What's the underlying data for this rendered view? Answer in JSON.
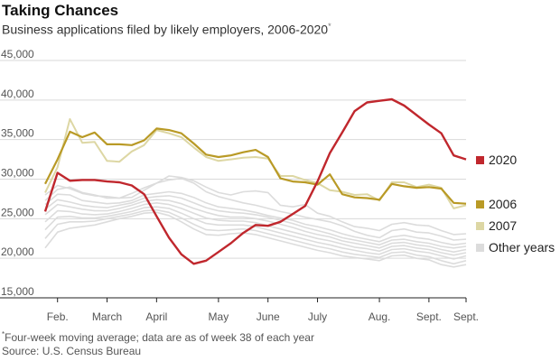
{
  "title": "Taking Chances",
  "subtitle": "Business applications filed by likely employers, 2006-2020",
  "subtitle_marker": "*",
  "footnote_marker": "*",
  "footnote": "Four-week moving average; data are as of week 38 of each year",
  "source": "Source: U.S. Census Bureau",
  "colors": {
    "s2020": "#c0272d",
    "s2006": "#b99a26",
    "s2007": "#ddd7a4",
    "other": "#dcdcdc",
    "grid": "#d9d9d9",
    "axis": "#222222"
  },
  "chart_data": {
    "type": "line",
    "title": "Taking Chances",
    "subtitle": "Business applications filed by likely employers, 2006-2020",
    "x_unit": "week of year",
    "xlim": [
      4,
      38
    ],
    "ylim": [
      15000,
      45000
    ],
    "yticks": [
      45000,
      40000,
      35000,
      30000,
      25000,
      20000,
      15000
    ],
    "ytick_labels": [
      "45,000",
      "40,000",
      "35,000",
      "30,000",
      "25,000",
      "20,000",
      "15,000"
    ],
    "xticks": [
      {
        "week": 5,
        "label": "Feb."
      },
      {
        "week": 9,
        "label": "March"
      },
      {
        "week": 13,
        "label": "April"
      },
      {
        "week": 18,
        "label": "May"
      },
      {
        "week": 22,
        "label": "June"
      },
      {
        "week": 26,
        "label": "July"
      },
      {
        "week": 31,
        "label": "Aug."
      },
      {
        "week": 35,
        "label": "Sept."
      },
      {
        "week": 38,
        "label": "Sept."
      }
    ],
    "grid": "horizontal",
    "legend_position": "right",
    "series": [
      {
        "name": "2020",
        "legend": true,
        "weeks": [
          4,
          5,
          6,
          7,
          8,
          9,
          10,
          11,
          12,
          13,
          14,
          15,
          16,
          17,
          18,
          19,
          20,
          21,
          22,
          23,
          24,
          25,
          26,
          27,
          28,
          29,
          30,
          31,
          32,
          33,
          34,
          35,
          36,
          37,
          38
        ],
        "values": [
          25900,
          30800,
          29800,
          29900,
          29900,
          29700,
          29600,
          29200,
          28100,
          25300,
          22600,
          20500,
          19300,
          19700,
          20800,
          21900,
          23200,
          24200,
          24100,
          24600,
          25600,
          26600,
          29700,
          33300,
          35900,
          38600,
          39700,
          39900,
          40100,
          39300,
          38100,
          36900,
          35800,
          33000,
          32500
        ]
      },
      {
        "name": "2006",
        "legend": true,
        "weeks": [
          4,
          5,
          6,
          7,
          8,
          9,
          10,
          11,
          12,
          13,
          14,
          15,
          16,
          17,
          18,
          19,
          20,
          21,
          22,
          23,
          24,
          25,
          26,
          27,
          28,
          29,
          30,
          31,
          32,
          33,
          34,
          35,
          36,
          37,
          38
        ],
        "values": [
          29400,
          32500,
          36000,
          35300,
          35900,
          34400,
          34400,
          34300,
          34900,
          36400,
          36200,
          35800,
          34500,
          33100,
          32800,
          33000,
          33400,
          33700,
          32800,
          30100,
          29700,
          29600,
          29300,
          30600,
          28100,
          27700,
          27600,
          27400,
          29400,
          29100,
          28900,
          29000,
          28800,
          27000,
          26900
        ]
      },
      {
        "name": "2007",
        "legend": true,
        "weeks": [
          4,
          5,
          6,
          7,
          8,
          9,
          10,
          11,
          12,
          13,
          14,
          15,
          16,
          17,
          18,
          19,
          20,
          21,
          22,
          23,
          24,
          25,
          26,
          27,
          28,
          29,
          30,
          31,
          32,
          33,
          34,
          35,
          36,
          37,
          38
        ],
        "values": [
          28300,
          31500,
          37600,
          34600,
          34700,
          32300,
          32200,
          33500,
          34300,
          36200,
          35800,
          35300,
          34000,
          32800,
          32300,
          32500,
          32700,
          32800,
          32600,
          30400,
          30400,
          29900,
          29500,
          28600,
          28400,
          28000,
          28100,
          27300,
          29600,
          29600,
          29000,
          29300,
          28900,
          26300,
          26700
        ]
      },
      {
        "name": "Other years",
        "legend": true,
        "weeks": [
          4,
          5,
          6,
          7,
          8,
          9,
          10,
          11,
          12,
          13,
          14,
          15,
          16,
          17,
          18,
          19,
          20,
          21,
          22,
          23,
          24,
          25,
          26,
          27,
          28,
          29,
          30,
          31,
          32,
          33,
          34,
          35,
          36,
          37,
          38
        ],
        "values": [
          28000,
          29200,
          28800,
          28200,
          27900,
          27800,
          27600,
          27700,
          28600,
          29500,
          30400,
          30200,
          29800,
          29000,
          28300,
          28000,
          28400,
          28500,
          28300,
          26700,
          26500,
          26800,
          25700,
          25300,
          24600,
          24000,
          23800,
          23500,
          24300,
          24500,
          24200,
          24100,
          23500,
          23000,
          23100
        ]
      },
      {
        "name": "",
        "legend": false,
        "weeks": [
          4,
          5,
          6,
          7,
          8,
          9,
          10,
          11,
          12,
          13,
          14,
          15,
          16,
          17,
          18,
          19,
          20,
          21,
          22,
          23,
          24,
          25,
          26,
          27,
          28,
          29,
          30,
          31,
          32,
          33,
          34,
          35,
          36,
          37,
          38
        ],
        "values": [
          27300,
          28700,
          29000,
          28300,
          28000,
          27600,
          27600,
          28200,
          28900,
          29500,
          29900,
          30100,
          29500,
          28400,
          27800,
          27400,
          27000,
          26700,
          26300,
          25900,
          25600,
          25200,
          24900,
          24600,
          24100,
          23400,
          22900,
          22600,
          23500,
          23700,
          23300,
          23200,
          22800,
          22300,
          22400
        ]
      },
      {
        "name": "",
        "legend": false,
        "weeks": [
          4,
          5,
          6,
          7,
          8,
          9,
          10,
          11,
          12,
          13,
          14,
          15,
          16,
          17,
          18,
          19,
          20,
          21,
          22,
          23,
          24,
          25,
          26,
          27,
          28,
          29,
          30,
          31,
          32,
          33,
          34,
          35,
          36,
          37,
          38
        ],
        "values": [
          26800,
          28100,
          28000,
          27300,
          27100,
          26900,
          27000,
          27300,
          28000,
          28200,
          28400,
          28200,
          27700,
          27000,
          26500,
          26300,
          26100,
          25800,
          25400,
          25100,
          24800,
          24300,
          24000,
          23600,
          23100,
          22700,
          22400,
          22100,
          22700,
          22900,
          22600,
          22400,
          22000,
          21700,
          21900
        ]
      },
      {
        "name": "",
        "legend": false,
        "weeks": [
          4,
          5,
          6,
          7,
          8,
          9,
          10,
          11,
          12,
          13,
          14,
          15,
          16,
          17,
          18,
          19,
          20,
          21,
          22,
          23,
          24,
          25,
          26,
          27,
          28,
          29,
          30,
          31,
          32,
          33,
          34,
          35,
          36,
          37,
          38
        ],
        "values": [
          26200,
          27400,
          27100,
          26700,
          26500,
          26400,
          26700,
          27000,
          27600,
          27800,
          27900,
          27600,
          27000,
          26400,
          26000,
          25800,
          25700,
          25500,
          25200,
          24800,
          24400,
          23900,
          23500,
          23100,
          22600,
          22300,
          22000,
          21700,
          22300,
          22400,
          22100,
          21900,
          21500,
          21300,
          21500
        ]
      },
      {
        "name": "",
        "legend": false,
        "weeks": [
          4,
          5,
          6,
          7,
          8,
          9,
          10,
          11,
          12,
          13,
          14,
          15,
          16,
          17,
          18,
          19,
          20,
          21,
          22,
          23,
          24,
          25,
          26,
          27,
          28,
          29,
          30,
          31,
          32,
          33,
          34,
          35,
          36,
          37,
          38
        ],
        "values": [
          25500,
          26800,
          26500,
          26200,
          26000,
          26000,
          26300,
          26700,
          27200,
          27400,
          27300,
          26900,
          26300,
          25800,
          25400,
          25200,
          25200,
          25000,
          24700,
          24300,
          23900,
          23400,
          23000,
          22700,
          22200,
          21900,
          21600,
          21300,
          21900,
          22000,
          21700,
          21500,
          21100,
          20800,
          21100
        ]
      },
      {
        "name": "",
        "legend": false,
        "weeks": [
          4,
          5,
          6,
          7,
          8,
          9,
          10,
          11,
          12,
          13,
          14,
          15,
          16,
          17,
          18,
          19,
          20,
          21,
          22,
          23,
          24,
          25,
          26,
          27,
          28,
          29,
          30,
          31,
          32,
          33,
          34,
          35,
          36,
          37,
          38
        ],
        "values": [
          24600,
          26000,
          25900,
          25600,
          25500,
          25600,
          25900,
          26300,
          26800,
          27000,
          26800,
          26300,
          25700,
          25100,
          24800,
          24700,
          24700,
          24500,
          24100,
          23700,
          23300,
          22900,
          22500,
          22200,
          21800,
          21400,
          21200,
          20900,
          21500,
          21600,
          21300,
          21100,
          20700,
          20400,
          20700
        ]
      },
      {
        "name": "",
        "legend": false,
        "weeks": [
          4,
          5,
          6,
          7,
          8,
          9,
          10,
          11,
          12,
          13,
          14,
          15,
          16,
          17,
          18,
          19,
          20,
          21,
          22,
          23,
          24,
          25,
          26,
          27,
          28,
          29,
          30,
          31,
          32,
          33,
          34,
          35,
          36,
          37,
          38
        ],
        "values": [
          23600,
          25200,
          25300,
          25100,
          25100,
          25300,
          25600,
          25900,
          26400,
          26500,
          26300,
          25700,
          25000,
          24400,
          24200,
          24200,
          24200,
          24000,
          23600,
          23200,
          22800,
          22400,
          22000,
          21700,
          21300,
          21000,
          20700,
          20500,
          21100,
          21200,
          20900,
          20700,
          20300,
          19900,
          20300
        ]
      },
      {
        "name": "",
        "legend": false,
        "weeks": [
          4,
          5,
          6,
          7,
          8,
          9,
          10,
          11,
          12,
          13,
          14,
          15,
          16,
          17,
          18,
          19,
          20,
          21,
          22,
          23,
          24,
          25,
          26,
          27,
          28,
          29,
          30,
          31,
          32,
          33,
          34,
          35,
          36,
          37,
          38
        ],
        "values": [
          22500,
          24300,
          24600,
          24600,
          24700,
          25000,
          25300,
          25600,
          26000,
          26100,
          25800,
          25100,
          24300,
          23600,
          23500,
          23600,
          23700,
          23500,
          23100,
          22700,
          22300,
          21900,
          21500,
          21200,
          20800,
          20500,
          20300,
          20100,
          20700,
          20800,
          20400,
          20200,
          19700,
          19300,
          19700
        ]
      },
      {
        "name": "",
        "legend": false,
        "weeks": [
          4,
          5,
          6,
          7,
          8,
          9,
          10,
          11,
          12,
          13,
          14,
          15,
          16,
          17,
          18,
          19,
          20,
          21,
          22,
          23,
          24,
          25,
          26,
          27,
          28,
          29,
          30,
          31,
          32,
          33,
          34,
          35,
          36,
          37,
          38
        ],
        "values": [
          21300,
          23300,
          23800,
          24000,
          24200,
          24600,
          25000,
          25300,
          25700,
          25800,
          25400,
          24600,
          23700,
          23000,
          22900,
          23100,
          23200,
          23000,
          22600,
          22200,
          21800,
          21400,
          21000,
          20700,
          20300,
          20100,
          19900,
          19700,
          20300,
          20400,
          20000,
          19800,
          19200,
          18900,
          19200
        ]
      }
    ]
  }
}
